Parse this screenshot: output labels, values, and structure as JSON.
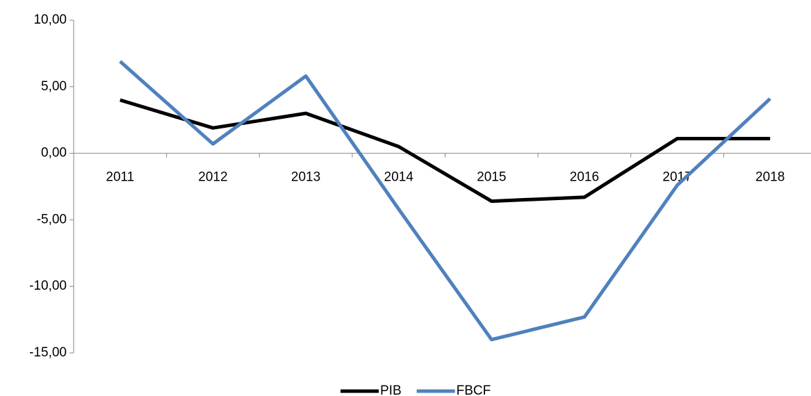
{
  "chart_data": {
    "type": "line",
    "categories": [
      "2011",
      "2012",
      "2013",
      "2014",
      "2015",
      "2016",
      "2017",
      "2018"
    ],
    "series": [
      {
        "name": "PIB",
        "color": "#000000",
        "values": [
          4.0,
          1.9,
          3.0,
          0.5,
          -3.6,
          -3.3,
          1.1,
          1.1
        ]
      },
      {
        "name": "FBCF",
        "color": "#4f81bd",
        "values": [
          6.9,
          0.7,
          5.8,
          -4.2,
          -14.0,
          -12.3,
          -2.4,
          4.1
        ]
      }
    ],
    "ylim": [
      -15,
      10
    ],
    "yticks": [
      {
        "value": -15,
        "label": "-15,00"
      },
      {
        "value": -10,
        "label": "-10,00"
      },
      {
        "value": -5,
        "label": "-5,00"
      },
      {
        "value": 0,
        "label": "0,00"
      },
      {
        "value": 5,
        "label": "5,00"
      },
      {
        "value": 10,
        "label": "10,00"
      }
    ],
    "legend": "bottom"
  }
}
